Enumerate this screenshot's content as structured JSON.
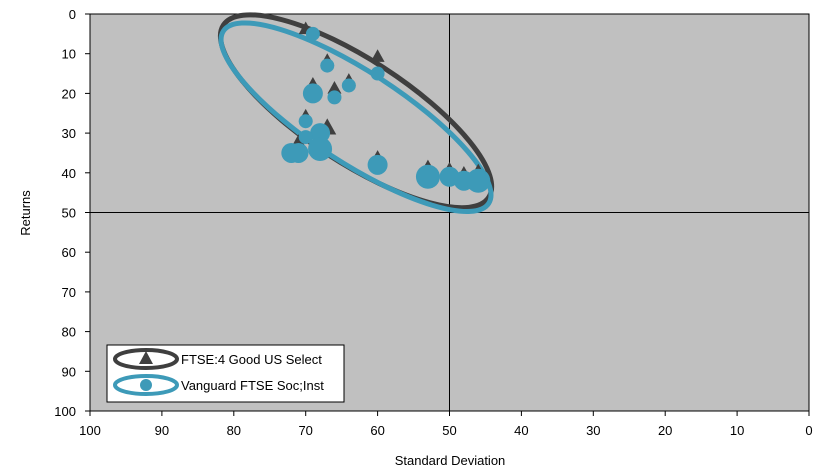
{
  "chart_data": {
    "type": "scatter",
    "xlabel": "Standard Deviation",
    "ylabel": "Returns",
    "xlim": [
      100,
      0
    ],
    "ylim": [
      0,
      100
    ],
    "x_ticks": [
      "100",
      "90",
      "80",
      "70",
      "60",
      "50",
      "40",
      "30",
      "20",
      "10",
      "0"
    ],
    "y_ticks": [
      "0",
      "10",
      "20",
      "30",
      "40",
      "50",
      "60",
      "70",
      "80",
      "90",
      "100"
    ],
    "midlines": {
      "x": 50,
      "y": 50
    },
    "grid": false,
    "background_color": "#c0c0c0",
    "legend_position": "bottom-left",
    "series": [
      {
        "name": "FTSE:4 Good US Select",
        "marker": "triangle",
        "color": "#3f3f3f",
        "points": [
          {
            "x": 70,
            "y": 4,
            "size": "small"
          },
          {
            "x": 60,
            "y": 11,
            "size": "small"
          },
          {
            "x": 67,
            "y": 12,
            "size": "small"
          },
          {
            "x": 64,
            "y": 17,
            "size": "small"
          },
          {
            "x": 66,
            "y": 19,
            "size": "small"
          },
          {
            "x": 69,
            "y": 18,
            "size": "small"
          },
          {
            "x": 70,
            "y": 26,
            "size": "small"
          },
          {
            "x": 67,
            "y": 29,
            "size": "medium"
          },
          {
            "x": 68,
            "y": 32,
            "size": "medium"
          },
          {
            "x": 71,
            "y": 33,
            "size": "medium"
          },
          {
            "x": 68,
            "y": 33,
            "size": "medium"
          },
          {
            "x": 60,
            "y": 37,
            "size": "medium"
          },
          {
            "x": 53,
            "y": 40,
            "size": "large"
          },
          {
            "x": 50,
            "y": 40,
            "size": "medium"
          },
          {
            "x": 48,
            "y": 41,
            "size": "medium"
          },
          {
            "x": 46,
            "y": 41,
            "size": "large"
          }
        ],
        "ellipse": {
          "cx": 63,
          "cy": 24.5,
          "rx": 22,
          "ry": 13,
          "angle": 33
        }
      },
      {
        "name": "Vanguard FTSE Soc;Inst",
        "marker": "circle",
        "color": "#3d9ab8",
        "points": [
          {
            "x": 69,
            "y": 5,
            "size": "small"
          },
          {
            "x": 60,
            "y": 15,
            "size": "small"
          },
          {
            "x": 67,
            "y": 13,
            "size": "small"
          },
          {
            "x": 64,
            "y": 18,
            "size": "small"
          },
          {
            "x": 66,
            "y": 21,
            "size": "small"
          },
          {
            "x": 69,
            "y": 20,
            "size": "medium"
          },
          {
            "x": 70,
            "y": 27,
            "size": "small"
          },
          {
            "x": 68,
            "y": 30,
            "size": "medium"
          },
          {
            "x": 70,
            "y": 31,
            "size": "small"
          },
          {
            "x": 68,
            "y": 34,
            "size": "large"
          },
          {
            "x": 71,
            "y": 35,
            "size": "medium"
          },
          {
            "x": 72,
            "y": 35,
            "size": "medium"
          },
          {
            "x": 60,
            "y": 38,
            "size": "medium"
          },
          {
            "x": 53,
            "y": 41,
            "size": "large"
          },
          {
            "x": 50,
            "y": 41,
            "size": "medium"
          },
          {
            "x": 48,
            "y": 42,
            "size": "medium"
          },
          {
            "x": 46,
            "y": 42,
            "size": "large"
          }
        ],
        "ellipse": {
          "cx": 63,
          "cy": 26,
          "rx": 22,
          "ry": 11.5,
          "angle": 33
        }
      }
    ]
  }
}
